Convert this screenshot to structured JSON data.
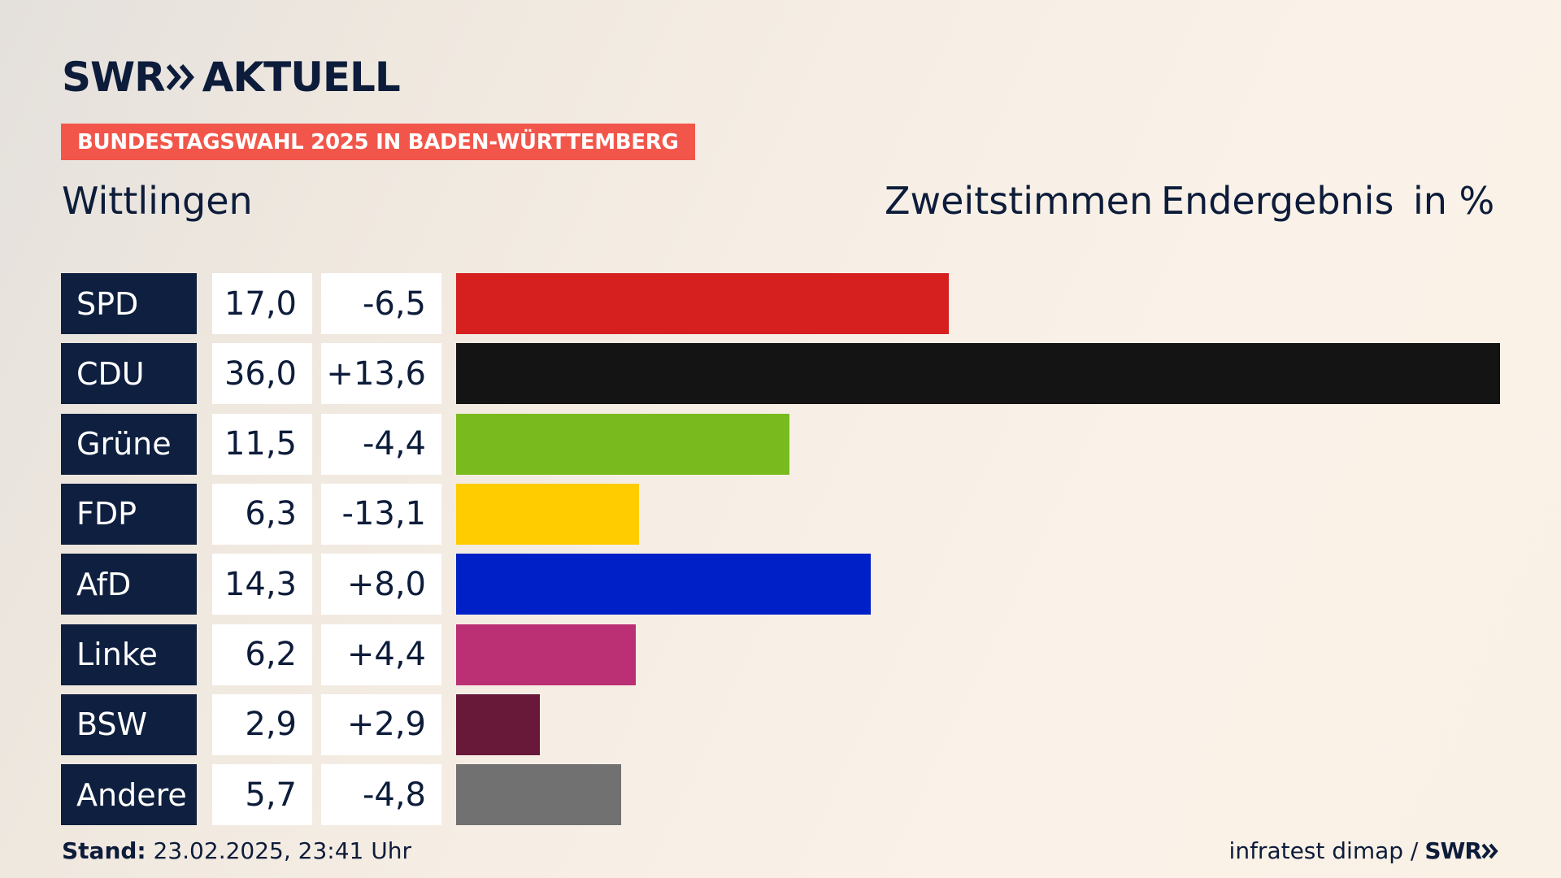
{
  "brand": {
    "logo_left": "SWR",
    "logo_right": "AKTUELL"
  },
  "banner": "BUNDESTAGSWAHL 2025 IN BADEN-WÜRTTEMBERG",
  "region": "Wittlingen",
  "header": {
    "vote_type": "Zweitstimmen",
    "status": "Endergebnis",
    "unit": "in %"
  },
  "chart_data": {
    "type": "bar",
    "orientation": "horizontal",
    "categories": [
      "SPD",
      "CDU",
      "Grüne",
      "FDP",
      "AfD",
      "Linke",
      "BSW",
      "Andere"
    ],
    "values": [
      17.0,
      36.0,
      11.5,
      6.3,
      14.3,
      6.2,
      2.9,
      5.7
    ],
    "value_labels": [
      "17,0",
      "36,0",
      "11,5",
      "6,3",
      "14,3",
      "6,2",
      "2,9",
      "5,7"
    ],
    "diff_labels": [
      "-6,5",
      "+13,6",
      "-4,4",
      "-13,1",
      "+8,0",
      "+4,4",
      "+2,9",
      "-4,8"
    ],
    "diffs": [
      -6.5,
      13.6,
      -4.4,
      -13.1,
      8.0,
      4.4,
      2.9,
      -4.8
    ],
    "colors": [
      "#d61f1f",
      "#141414",
      "#79bb1e",
      "#ffcc00",
      "#0020c7",
      "#bb2f75",
      "#681839",
      "#717171"
    ],
    "xlim": [
      0,
      36.0
    ]
  },
  "footer": {
    "stand_label": "Stand:",
    "stand_value": "23.02.2025, 23:41 Uhr",
    "source": "infratest dimap /",
    "source_logo": "SWR"
  }
}
